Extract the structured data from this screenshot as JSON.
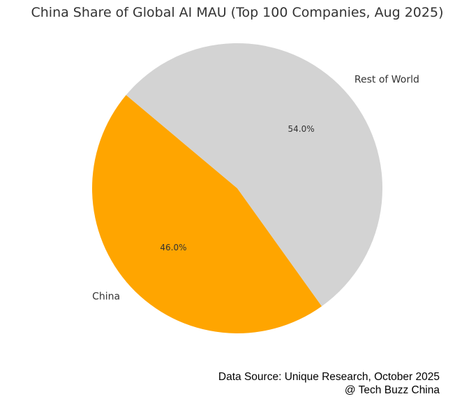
{
  "chart_data": {
    "type": "pie",
    "title": "China Share of Global AI MAU (Top 100 Companies, Aug 2025)",
    "start_angle_deg": 140,
    "direction": "counterclockwise",
    "slices": [
      {
        "label": "China",
        "value": 46.0,
        "pct_label": "46.0%",
        "color": "#FFA500"
      },
      {
        "label": "Rest of World",
        "value": 54.0,
        "pct_label": "54.0%",
        "color": "#D3D3D3"
      }
    ]
  },
  "footer": {
    "source": "Data Source: Unique Research, October 2025",
    "credit": "@ Tech Buzz China"
  }
}
